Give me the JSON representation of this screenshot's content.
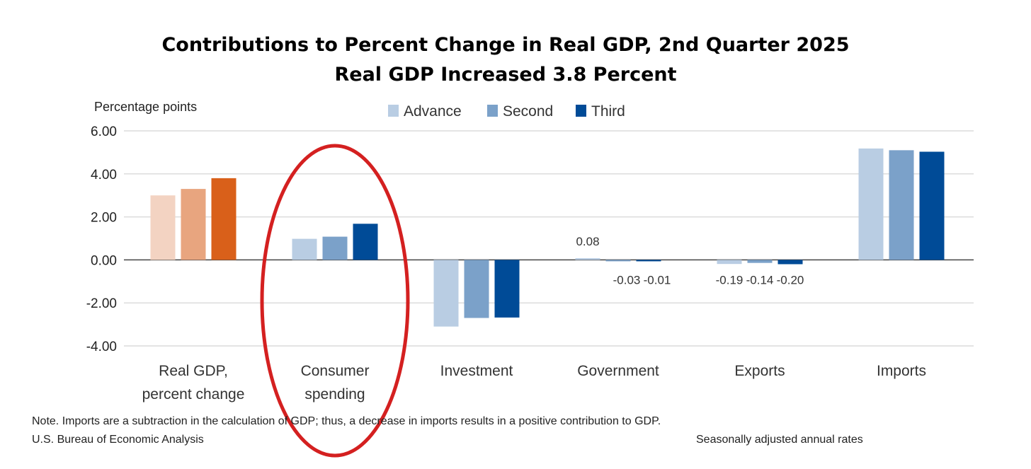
{
  "chart_data": {
    "type": "bar",
    "title": "Contributions to Percent Change in Real GDP, 2nd Quarter 2025",
    "subtitle": "Real GDP Increased 3.8 Percent",
    "ylabel": "Percentage points",
    "xlabel": "",
    "ylim": [
      -4,
      6
    ],
    "yticks": [
      "6.00",
      "4.00",
      "2.00",
      "0.00",
      "-2.00",
      "-4.00"
    ],
    "ytick_values": [
      6,
      4,
      2,
      0,
      -2,
      -4
    ],
    "grid": true,
    "legend_position": "top",
    "categories": [
      [
        "Real GDP,",
        "percent change"
      ],
      [
        "Consumer",
        "spending"
      ],
      [
        "Investment"
      ],
      [
        "Government"
      ],
      [
        "Exports"
      ],
      [
        "Imports"
      ]
    ],
    "series": [
      {
        "name": "Advance",
        "color": "#b9cde3",
        "values": [
          3.0,
          0.98,
          -3.1,
          0.08,
          -0.19,
          5.18
        ]
      },
      {
        "name": "Second",
        "color": "#7ba1c9",
        "values": [
          3.3,
          1.08,
          -2.7,
          -0.03,
          -0.14,
          5.1
        ]
      },
      {
        "name": "Third",
        "color": "#004b97",
        "values": [
          3.8,
          1.68,
          -2.68,
          -0.01,
          -0.2,
          5.03
        ]
      }
    ],
    "highlight_colors": [
      "#f3d3c2",
      "#e8a57f",
      "#d9601a"
    ],
    "data_labels": [
      [
        null,
        null,
        null
      ],
      [
        null,
        null,
        null
      ],
      [
        null,
        null,
        null
      ],
      [
        "0.08",
        "-0.03",
        "-0.01"
      ],
      [
        "-0.19",
        "-0.14",
        "-0.20"
      ],
      [
        null,
        null,
        null
      ]
    ],
    "annotation": {
      "type": "ellipse",
      "target": "Consumer spending",
      "color": "#d42020"
    }
  },
  "footer": {
    "note": "Note. Imports are a subtraction in the calculation of GDP; thus, a decrease in imports results in a positive contribution to GDP.",
    "source": "U.S. Bureau of Economic Analysis",
    "rates": "Seasonally adjusted annual rates"
  }
}
